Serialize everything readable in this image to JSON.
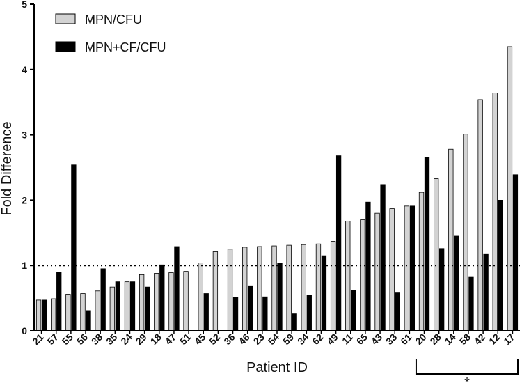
{
  "chart_data": {
    "type": "bar",
    "xlabel": "Patient ID",
    "ylabel": "Fold Difference",
    "ylim": [
      0,
      5
    ],
    "yticks": [
      "0",
      "1",
      "2",
      "3",
      "4",
      "5"
    ],
    "reference_line": 1,
    "categories": [
      "21",
      "57",
      "55",
      "56",
      "38",
      "35",
      "24",
      "29",
      "18",
      "47",
      "51",
      "45",
      "52",
      "36",
      "46",
      "23",
      "54",
      "59",
      "34",
      "62",
      "49",
      "11",
      "65",
      "43",
      "33",
      "61",
      "20",
      "28",
      "14",
      "58",
      "42",
      "12",
      "17"
    ],
    "series": [
      {
        "name": "MPN/CFU",
        "color": "#d3d3d3",
        "values": [
          0.47,
          0.49,
          0.56,
          0.57,
          0.61,
          0.67,
          0.75,
          0.86,
          0.88,
          0.89,
          0.91,
          1.04,
          1.21,
          1.25,
          1.28,
          1.29,
          1.3,
          1.31,
          1.32,
          1.33,
          1.37,
          1.68,
          1.7,
          1.8,
          1.87,
          1.91,
          2.12,
          2.33,
          2.78,
          3.01,
          3.54,
          3.64,
          4.35
        ]
      },
      {
        "name": "MPN+CF/CFU",
        "color": "#000000",
        "values": [
          0.47,
          0.9,
          2.54,
          0.31,
          0.95,
          0.75,
          0.75,
          0.67,
          1.01,
          1.29,
          null,
          0.57,
          null,
          0.51,
          0.69,
          0.52,
          1.03,
          0.26,
          0.55,
          1.15,
          2.68,
          0.62,
          1.97,
          2.24,
          0.58,
          1.91,
          2.66,
          1.26,
          1.45,
          0.82,
          1.17,
          2.0,
          2.39
        ]
      }
    ],
    "legend_position": "top-left",
    "annotation": {
      "symbol": "*",
      "from_category": "20",
      "to_category": "17"
    }
  }
}
